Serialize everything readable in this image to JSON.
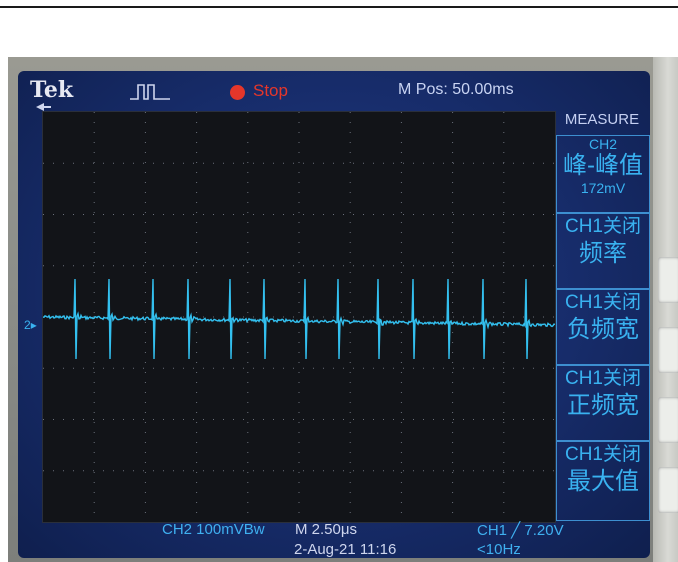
{
  "header": {
    "brand": "Tek",
    "trigger_icon": "pulse-icon",
    "run_state": "Stop",
    "position": "M Pos: 50.00ms",
    "menu_title": "MEASURE"
  },
  "measure_menu": {
    "items": [
      {
        "channel": "CH2",
        "label": "峰-峰值",
        "value": "172mV"
      },
      {
        "channel": "CH1关闭",
        "label": "频率"
      },
      {
        "channel": "CH1关闭",
        "label": "负频宽"
      },
      {
        "channel": "CH1关闭",
        "label": "正频宽"
      },
      {
        "channel": "CH1关闭",
        "label": "最大值"
      }
    ]
  },
  "footer": {
    "ch2_scale": "CH2  100mVBw",
    "timebase": "M 2.50μs",
    "date_time": "2-Aug-21 11:16",
    "trigger": "CH1 ╱ 7.20V",
    "frequency": "<10Hz"
  },
  "channel_marker": "2",
  "colors": {
    "trace": "#33c0ef",
    "screen": "#172c6a",
    "stop": "#e5362a"
  }
}
